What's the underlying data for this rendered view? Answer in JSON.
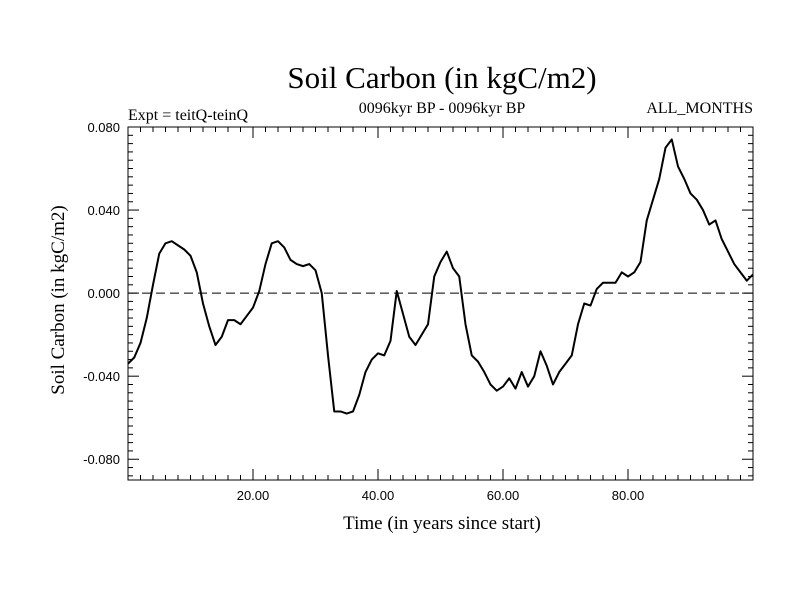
{
  "chart_data": {
    "type": "line",
    "title": "Soil Carbon (in kgC/m2)",
    "subtitle_left": "Expt = teitQ-teinQ",
    "subtitle_center": "0096kyr BP - 0096kyr BP",
    "subtitle_right": "ALL_MONTHS",
    "xlabel": "Time (in years since start)",
    "ylabel": "Soil Carbon (in kgC/m2)",
    "xlim": [
      0,
      100
    ],
    "ylim": [
      -0.09,
      0.08
    ],
    "xticks": [
      20,
      40,
      60,
      80
    ],
    "xtick_labels": [
      "20.00",
      "40.00",
      "60.00",
      "80.00"
    ],
    "yticks": [
      0.08,
      0.04,
      0.0,
      -0.04,
      -0.08
    ],
    "ytick_labels": [
      "0.080",
      "0.040",
      "0.000",
      "-0.040",
      "-0.080"
    ],
    "zero_line": {
      "value": 0.0,
      "style": "dashed"
    },
    "series": [
      {
        "name": "Soil Carbon",
        "color": "#000000",
        "x": [
          0,
          1,
          2,
          3,
          4,
          5,
          6,
          7,
          8,
          9,
          10,
          11,
          12,
          13,
          14,
          15,
          16,
          17,
          18,
          19,
          20,
          21,
          22,
          23,
          24,
          25,
          26,
          27,
          28,
          29,
          30,
          31,
          32,
          33,
          34,
          35,
          36,
          37,
          38,
          39,
          40,
          41,
          42,
          43,
          44,
          45,
          46,
          47,
          48,
          49,
          50,
          51,
          52,
          53,
          54,
          55,
          56,
          57,
          58,
          59,
          60,
          61,
          62,
          63,
          64,
          65,
          66,
          67,
          68,
          69,
          70,
          71,
          72,
          73,
          74,
          75,
          76,
          77,
          78,
          79,
          80,
          81,
          82,
          83,
          84,
          85,
          86,
          87,
          88,
          89,
          90,
          91,
          92,
          93,
          94,
          95,
          96,
          97,
          98,
          99,
          100
        ],
        "values": [
          -0.034,
          -0.031,
          -0.024,
          -0.012,
          0.004,
          0.019,
          0.024,
          0.025,
          0.023,
          0.021,
          0.018,
          0.01,
          -0.005,
          -0.016,
          -0.025,
          -0.021,
          -0.013,
          -0.013,
          -0.015,
          -0.011,
          -0.007,
          0.001,
          0.014,
          0.024,
          0.025,
          0.022,
          0.016,
          0.014,
          0.013,
          0.014,
          0.011,
          0.0,
          -0.03,
          -0.057,
          -0.057,
          -0.058,
          -0.057,
          -0.049,
          -0.038,
          -0.032,
          -0.029,
          -0.03,
          -0.023,
          0.001,
          -0.01,
          -0.021,
          -0.025,
          -0.02,
          -0.015,
          0.008,
          0.015,
          0.02,
          0.012,
          0.008,
          -0.015,
          -0.03,
          -0.033,
          -0.038,
          -0.044,
          -0.047,
          -0.045,
          -0.041,
          -0.046,
          -0.038,
          -0.045,
          -0.04,
          -0.028,
          -0.035,
          -0.044,
          -0.038,
          -0.034,
          -0.03,
          -0.015,
          -0.005,
          -0.006,
          0.002,
          0.005,
          0.005,
          0.005,
          0.01,
          0.008,
          0.01,
          0.015,
          0.035,
          0.045,
          0.055,
          0.07,
          0.074,
          0.061,
          0.055,
          0.048,
          0.045,
          0.04,
          0.033,
          0.035,
          0.026,
          0.02,
          0.014,
          0.01,
          0.006,
          0.009
        ]
      }
    ]
  }
}
